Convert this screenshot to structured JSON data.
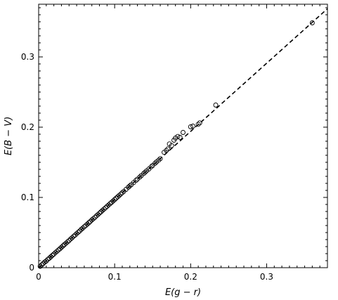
{
  "chart_data": {
    "type": "scatter",
    "xlabel": "E(g − r)",
    "ylabel": "E(B − V)",
    "xlim": [
      0,
      0.38
    ],
    "ylim": [
      0,
      0.375
    ],
    "x_ticks": [
      0,
      0.1,
      0.2,
      0.3
    ],
    "x_tick_labels": [
      "0",
      "0.1",
      "0.2",
      "0.3"
    ],
    "y_ticks": [
      0,
      0.1,
      0.2,
      0.3
    ],
    "y_tick_labels": [
      "0",
      "0.1",
      "0.2",
      "0.3"
    ],
    "grid": false,
    "marker": "open-circle",
    "fit_line": {
      "style": "dashed",
      "slope": 0.97,
      "intercept": 0.0
    },
    "series": [
      {
        "x": [
          0.002,
          0.004,
          0.006,
          0.008,
          0.01,
          0.012,
          0.014,
          0.016,
          0.018,
          0.02,
          0.022,
          0.024,
          0.026,
          0.028,
          0.03,
          0.032,
          0.034,
          0.036,
          0.038,
          0.04,
          0.042,
          0.044,
          0.046,
          0.048,
          0.05,
          0.052,
          0.054,
          0.056,
          0.058,
          0.06,
          0.062,
          0.064,
          0.066,
          0.068,
          0.07,
          0.072,
          0.074,
          0.076,
          0.078,
          0.08,
          0.082,
          0.084,
          0.086,
          0.088,
          0.09,
          0.092,
          0.094,
          0.096,
          0.098,
          0.1,
          0.102,
          0.104,
          0.106,
          0.108,
          0.11,
          0.112,
          0.115,
          0.118,
          0.12,
          0.122,
          0.125,
          0.128,
          0.13,
          0.133,
          0.135,
          0.138,
          0.14,
          0.142,
          0.145,
          0.148,
          0.15,
          0.153,
          0.155,
          0.158,
          0.16,
          0.165,
          0.168,
          0.17,
          0.172,
          0.175,
          0.178,
          0.18,
          0.183,
          0.186,
          0.19,
          0.2,
          0.203,
          0.21,
          0.212,
          0.233,
          0.36
        ],
        "y": [
          0.002,
          0.004,
          0.006,
          0.008,
          0.0095,
          0.0118,
          0.0135,
          0.0155,
          0.0175,
          0.0193,
          0.0214,
          0.0232,
          0.0252,
          0.027,
          0.029,
          0.031,
          0.033,
          0.0348,
          0.0368,
          0.0386,
          0.0408,
          0.0426,
          0.0447,
          0.0464,
          0.0486,
          0.0504,
          0.0522,
          0.0545,
          0.0562,
          0.0583,
          0.0601,
          0.062,
          0.064,
          0.0658,
          0.068,
          0.0698,
          0.0716,
          0.0738,
          0.0756,
          0.0776,
          0.0795,
          0.0815,
          0.0834,
          0.0853,
          0.0873,
          0.0892,
          0.0912,
          0.093,
          0.095,
          0.097,
          0.099,
          0.1009,
          0.1028,
          0.1047,
          0.1068,
          0.1086,
          0.1115,
          0.1145,
          0.1165,
          0.1183,
          0.1212,
          0.1242,
          0.1261,
          0.129,
          0.131,
          0.1339,
          0.1358,
          0.1378,
          0.1405,
          0.1436,
          0.1455,
          0.1484,
          0.1505,
          0.1532,
          0.1552,
          0.1642,
          0.1668,
          0.169,
          0.1762,
          0.1738,
          0.1815,
          0.1845,
          0.1868,
          0.1855,
          0.1925,
          0.2005,
          0.2015,
          0.2042,
          0.2062,
          0.2315,
          0.3485
        ]
      }
    ]
  }
}
